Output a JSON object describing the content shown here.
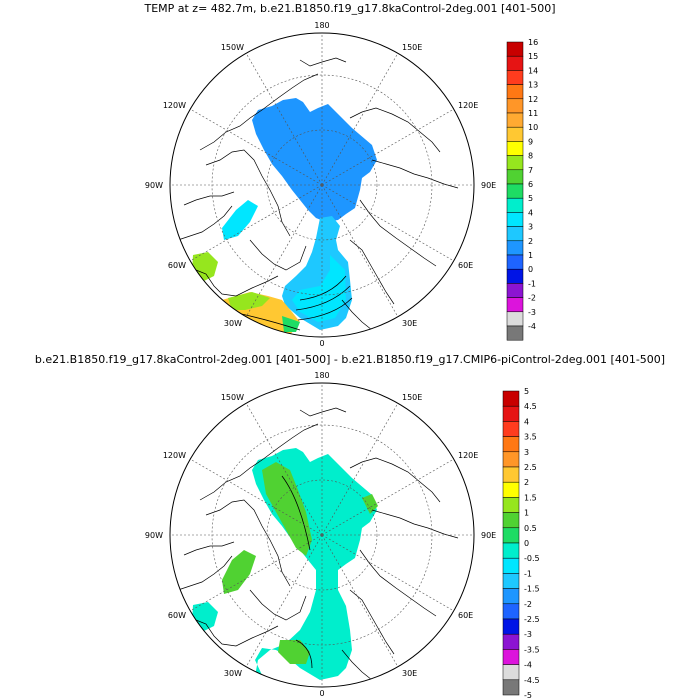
{
  "panels": [
    {
      "title": "TEMP at z= 482.7m, b.e21.B1850.f19_g17.8kaControl-2deg.001 [401-500]",
      "lon_labels": [
        "180",
        "150E",
        "120E",
        "90E",
        "60E",
        "30E",
        "0",
        "30W",
        "60W",
        "90W",
        "120W",
        "150W"
      ],
      "colorbar": {
        "labels": [
          "16",
          "15",
          "14",
          "13",
          "12",
          "11",
          "10",
          "9",
          "8",
          "7",
          "6",
          "5",
          "4",
          "3",
          "2",
          "1",
          "0",
          "-1",
          "-2",
          "-3",
          "-4"
        ],
        "colors": [
          "#c80000",
          "#e61414",
          "#ff3c1e",
          "#ff7814",
          "#ff9628",
          "#ffaa32",
          "#ffc832",
          "#ffff00",
          "#96e61e",
          "#50d232",
          "#1edc64",
          "#00eecc",
          "#00e6ff",
          "#1ec8ff",
          "#1e96ff",
          "#1e64ff",
          "#0014e6",
          "#8c14d2",
          "#dc14dc",
          "#dcdcdc",
          "#787878"
        ]
      }
    },
    {
      "title": "b.e21.B1850.f19_g17.8kaControl-2deg.001 [401-500] - b.e21.B1850.f19_g17.CMIP6-piControl-2deg.001 [401-500]",
      "lon_labels": [
        "180",
        "150E",
        "120E",
        "90E",
        "60E",
        "30E",
        "0",
        "30W",
        "60W",
        "90W",
        "120W",
        "150W"
      ],
      "colorbar": {
        "labels": [
          "5",
          "4.5",
          "4",
          "3.5",
          "3",
          "2.5",
          "2",
          "1.5",
          "1",
          "0.5",
          "0",
          "-0.5",
          "-1",
          "-1.5",
          "-2",
          "-2.5",
          "-3",
          "-3.5",
          "-4",
          "-4.5",
          "-5"
        ],
        "colors": [
          "#c80000",
          "#e61414",
          "#ff3c1e",
          "#ff7814",
          "#ff9628",
          "#ffc832",
          "#ffff00",
          "#96e61e",
          "#50d232",
          "#1edc64",
          "#00eecc",
          "#00e6ff",
          "#1ec8ff",
          "#1e96ff",
          "#1e64ff",
          "#0014e6",
          "#8c14d2",
          "#dc14dc",
          "#dcdcdc",
          "#787878"
        ]
      }
    }
  ]
}
